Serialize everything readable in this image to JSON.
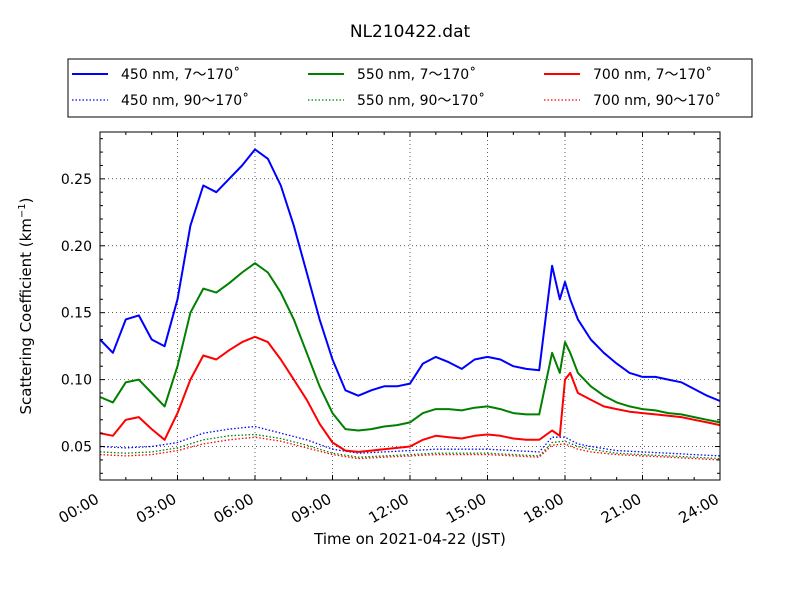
{
  "chart_data": {
    "type": "line",
    "title": "NL210422.dat",
    "xlabel": "Time on 2021-04-22 (JST)",
    "ylabel_main": "Scattering Coefficient (km",
    "ylabel_sup": "−1",
    "ylabel_close": ")",
    "xlim_hours": [
      0,
      24
    ],
    "ylim": [
      0.025,
      0.285
    ],
    "xticks": [
      {
        "value": 0,
        "label": "00:00"
      },
      {
        "value": 3,
        "label": "03:00"
      },
      {
        "value": 6,
        "label": "06:00"
      },
      {
        "value": 9,
        "label": "09:00"
      },
      {
        "value": 12,
        "label": "12:00"
      },
      {
        "value": 15,
        "label": "15:00"
      },
      {
        "value": 18,
        "label": "18:00"
      },
      {
        "value": 21,
        "label": "21:00"
      },
      {
        "value": 24,
        "label": "24:00"
      }
    ],
    "yticks": [
      {
        "value": 0.05,
        "label": "0.05"
      },
      {
        "value": 0.1,
        "label": "0.10"
      },
      {
        "value": 0.15,
        "label": "0.15"
      },
      {
        "value": 0.2,
        "label": "0.20"
      },
      {
        "value": 0.25,
        "label": "0.25"
      }
    ],
    "grid": true,
    "legend_position": "top",
    "series": [
      {
        "name": "450 nm, 7～170˚",
        "color": "#0000ff",
        "style": "solid",
        "x": [
          0,
          0.5,
          1,
          1.5,
          2,
          2.5,
          3,
          3.5,
          4,
          4.5,
          5,
          5.5,
          6,
          6.5,
          7,
          7.5,
          8,
          8.5,
          9,
          9.5,
          10,
          10.5,
          11,
          11.5,
          12,
          12.5,
          13,
          13.5,
          14,
          14.5,
          15,
          15.5,
          16,
          16.5,
          17,
          17.5,
          17.8,
          18,
          18.2,
          18.5,
          19,
          19.5,
          20,
          20.5,
          21,
          21.5,
          22,
          22.5,
          23,
          23.5,
          24
        ],
        "y": [
          0.13,
          0.12,
          0.145,
          0.148,
          0.13,
          0.125,
          0.16,
          0.215,
          0.245,
          0.24,
          0.25,
          0.26,
          0.272,
          0.265,
          0.245,
          0.215,
          0.18,
          0.145,
          0.115,
          0.092,
          0.088,
          0.092,
          0.095,
          0.095,
          0.097,
          0.112,
          0.117,
          0.113,
          0.108,
          0.115,
          0.117,
          0.115,
          0.11,
          0.108,
          0.107,
          0.185,
          0.16,
          0.173,
          0.16,
          0.145,
          0.13,
          0.12,
          0.112,
          0.105,
          0.102,
          0.102,
          0.1,
          0.098,
          0.093,
          0.088,
          0.084
        ]
      },
      {
        "name": "550 nm, 7～170˚",
        "color": "#008000",
        "style": "solid",
        "x": [
          0,
          0.5,
          1,
          1.5,
          2,
          2.5,
          3,
          3.5,
          4,
          4.5,
          5,
          5.5,
          6,
          6.5,
          7,
          7.5,
          8,
          8.5,
          9,
          9.5,
          10,
          10.5,
          11,
          11.5,
          12,
          12.5,
          13,
          13.5,
          14,
          14.5,
          15,
          15.5,
          16,
          16.5,
          17,
          17.5,
          17.8,
          18,
          18.2,
          18.5,
          19,
          19.5,
          20,
          20.5,
          21,
          21.5,
          22,
          22.5,
          23,
          23.5,
          24
        ],
        "y": [
          0.087,
          0.083,
          0.098,
          0.1,
          0.09,
          0.08,
          0.11,
          0.15,
          0.168,
          0.165,
          0.172,
          0.18,
          0.187,
          0.18,
          0.165,
          0.145,
          0.12,
          0.095,
          0.075,
          0.063,
          0.062,
          0.063,
          0.065,
          0.066,
          0.068,
          0.075,
          0.078,
          0.078,
          0.077,
          0.079,
          0.08,
          0.078,
          0.075,
          0.074,
          0.074,
          0.12,
          0.105,
          0.128,
          0.12,
          0.105,
          0.095,
          0.088,
          0.083,
          0.08,
          0.078,
          0.077,
          0.075,
          0.074,
          0.072,
          0.07,
          0.068
        ]
      },
      {
        "name": "700 nm, 7～170˚",
        "color": "#ff0000",
        "style": "solid",
        "x": [
          0,
          0.5,
          1,
          1.5,
          2,
          2.5,
          3,
          3.5,
          4,
          4.5,
          5,
          5.5,
          6,
          6.5,
          7,
          7.5,
          8,
          8.5,
          9,
          9.5,
          10,
          10.5,
          11,
          11.5,
          12,
          12.5,
          13,
          13.5,
          14,
          14.5,
          15,
          15.5,
          16,
          16.5,
          17,
          17.5,
          17.8,
          18,
          18.2,
          18.5,
          19,
          19.5,
          20,
          20.5,
          21,
          21.5,
          22,
          22.5,
          23,
          23.5,
          24
        ],
        "y": [
          0.06,
          0.058,
          0.07,
          0.072,
          0.063,
          0.055,
          0.075,
          0.1,
          0.118,
          0.115,
          0.122,
          0.128,
          0.132,
          0.128,
          0.115,
          0.1,
          0.085,
          0.067,
          0.053,
          0.047,
          0.046,
          0.047,
          0.048,
          0.049,
          0.05,
          0.055,
          0.058,
          0.057,
          0.056,
          0.058,
          0.059,
          0.058,
          0.056,
          0.055,
          0.055,
          0.062,
          0.058,
          0.1,
          0.105,
          0.09,
          0.085,
          0.08,
          0.078,
          0.076,
          0.075,
          0.074,
          0.073,
          0.072,
          0.07,
          0.068,
          0.066
        ]
      },
      {
        "name": "450 nm, 90～170˚",
        "color": "#0000ff",
        "style": "dotted",
        "x": [
          0,
          1,
          2,
          3,
          4,
          5,
          6,
          7,
          8,
          9,
          10,
          11,
          12,
          13,
          14,
          15,
          16,
          17,
          17.5,
          18,
          18.5,
          19,
          20,
          21,
          22,
          23,
          24
        ],
        "y": [
          0.05,
          0.049,
          0.05,
          0.053,
          0.06,
          0.063,
          0.065,
          0.06,
          0.055,
          0.048,
          0.045,
          0.046,
          0.047,
          0.048,
          0.048,
          0.048,
          0.047,
          0.046,
          0.057,
          0.057,
          0.052,
          0.05,
          0.047,
          0.046,
          0.045,
          0.044,
          0.043
        ]
      },
      {
        "name": "550 nm, 90～170˚",
        "color": "#008000",
        "style": "dotted",
        "x": [
          0,
          1,
          2,
          3,
          4,
          5,
          6,
          7,
          8,
          9,
          10,
          11,
          12,
          13,
          14,
          15,
          16,
          17,
          17.5,
          18,
          18.5,
          19,
          20,
          21,
          22,
          23,
          24
        ],
        "y": [
          0.046,
          0.045,
          0.046,
          0.049,
          0.055,
          0.058,
          0.059,
          0.056,
          0.051,
          0.045,
          0.042,
          0.043,
          0.044,
          0.045,
          0.045,
          0.045,
          0.044,
          0.043,
          0.053,
          0.054,
          0.05,
          0.048,
          0.045,
          0.044,
          0.043,
          0.042,
          0.041
        ]
      },
      {
        "name": "700 nm, 90～170˚",
        "color": "#ff0000",
        "style": "dotted",
        "x": [
          0,
          1,
          2,
          3,
          4,
          5,
          6,
          7,
          8,
          9,
          10,
          11,
          12,
          13,
          14,
          15,
          16,
          17,
          17.5,
          18,
          18.5,
          19,
          20,
          21,
          22,
          23,
          24
        ],
        "y": [
          0.044,
          0.043,
          0.044,
          0.047,
          0.052,
          0.055,
          0.057,
          0.054,
          0.049,
          0.044,
          0.041,
          0.042,
          0.043,
          0.044,
          0.044,
          0.044,
          0.043,
          0.042,
          0.051,
          0.052,
          0.048,
          0.046,
          0.044,
          0.043,
          0.042,
          0.041,
          0.04
        ]
      }
    ]
  }
}
